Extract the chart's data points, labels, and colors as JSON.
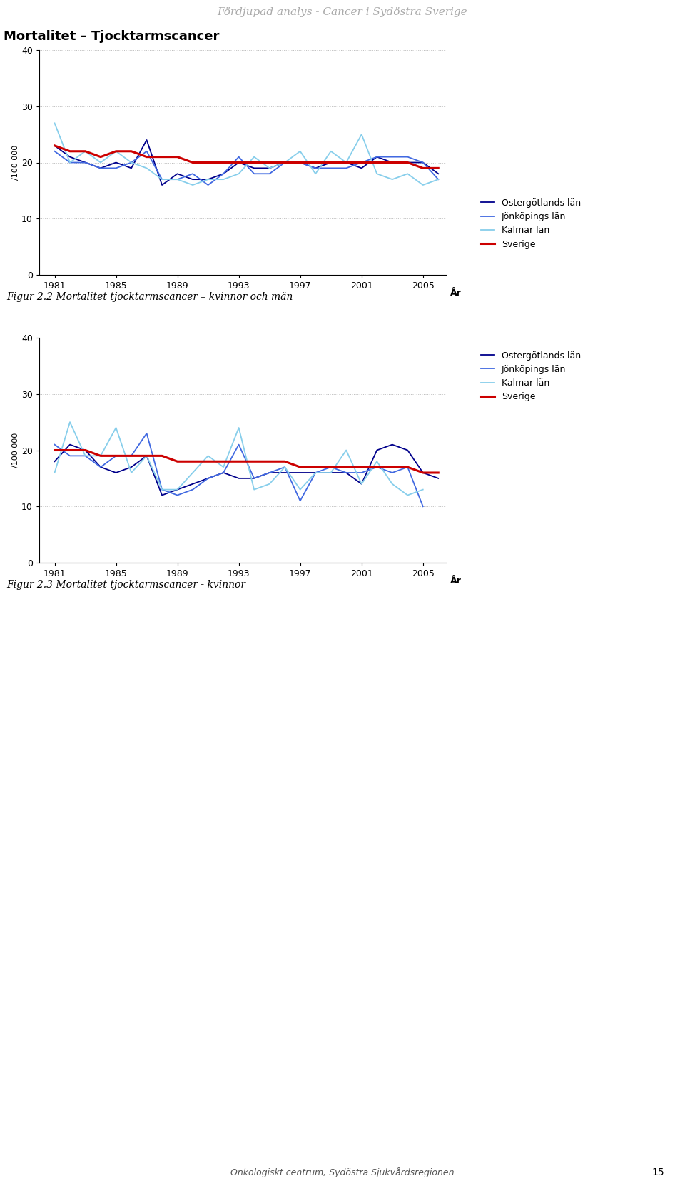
{
  "page_header": "Fördjupad analys - Cancer i Sydöstra Sverige",
  "page_footer": "Onkologiskt centrum, Sydöstra Sjukvårdsregionen",
  "page_number": "15",
  "chart1_title": "Mortalitet – Tjocktarmscancer",
  "chart1_caption": "Figur 2.2 Mortalitet tjocktarmscancer – kvinnor och män",
  "chart2_caption": "Figur 2.3 Mortalitet tjocktarmscancer - kvinnor",
  "ylabel": "/100 000",
  "xlabel": "År",
  "years": [
    1981,
    1982,
    1983,
    1984,
    1985,
    1986,
    1987,
    1988,
    1989,
    1990,
    1991,
    1992,
    1993,
    1994,
    1995,
    1996,
    1997,
    1998,
    1999,
    2000,
    2001,
    2002,
    2003,
    2004,
    2005,
    2006
  ],
  "chart1": {
    "ostergotland": [
      23,
      21,
      20,
      19,
      20,
      19,
      24,
      16,
      18,
      17,
      17,
      18,
      20,
      19,
      19,
      20,
      20,
      19,
      20,
      20,
      19,
      21,
      20,
      20,
      20,
      18
    ],
    "jonkoping": [
      22,
      20,
      20,
      19,
      19,
      20,
      22,
      17,
      17,
      18,
      16,
      18,
      21,
      18,
      18,
      20,
      20,
      19,
      19,
      19,
      20,
      21,
      21,
      21,
      20,
      17
    ],
    "kalmar": [
      27,
      20,
      22,
      20,
      22,
      20,
      19,
      17,
      17,
      16,
      17,
      17,
      18,
      21,
      19,
      20,
      22,
      18,
      22,
      20,
      25,
      18,
      17,
      18,
      16,
      17
    ],
    "sverige": [
      23,
      22,
      22,
      21,
      22,
      22,
      21,
      21,
      21,
      20,
      20,
      20,
      20,
      20,
      20,
      20,
      20,
      20,
      20,
      20,
      20,
      20,
      20,
      20,
      19,
      19
    ]
  },
  "chart2": {
    "ostergotland": [
      18,
      21,
      20,
      17,
      16,
      17,
      19,
      12,
      13,
      14,
      15,
      16,
      15,
      15,
      16,
      16,
      16,
      16,
      16,
      16,
      14,
      20,
      21,
      20,
      16,
      15
    ],
    "jonkoping": [
      21,
      19,
      19,
      17,
      19,
      19,
      23,
      13,
      12,
      13,
      15,
      16,
      21,
      15,
      16,
      17,
      11,
      16,
      17,
      16,
      16,
      17,
      16,
      17,
      10,
      null
    ],
    "kalmar": [
      16,
      25,
      19,
      19,
      24,
      16,
      19,
      13,
      13,
      16,
      19,
      17,
      24,
      13,
      14,
      17,
      13,
      16,
      16,
      20,
      14,
      18,
      14,
      12,
      13,
      null
    ],
    "sverige": [
      20,
      20,
      20,
      19,
      19,
      19,
      19,
      19,
      18,
      18,
      18,
      18,
      18,
      18,
      18,
      18,
      17,
      17,
      17,
      17,
      17,
      17,
      17,
      17,
      16,
      16
    ]
  },
  "colors": {
    "ostergotland": "#00008B",
    "jonkoping": "#4169E1",
    "kalmar": "#87CEEB",
    "sverige": "#CC0000"
  },
  "legend_labels": [
    "Östergötlands län",
    "Jönköpings län",
    "Kalmar län",
    "Sverige"
  ],
  "ylim": [
    0,
    40
  ],
  "yticks": [
    0,
    10,
    20,
    30,
    40
  ],
  "xticks": [
    1981,
    1985,
    1989,
    1993,
    1997,
    2001,
    2005
  ],
  "background_color": "#FFFFFF",
  "caption_bg_color": "#F0F0E0",
  "grid_color": "#BBBBBB",
  "header_color": "#AAAAAA",
  "header_fontsize": 11,
  "title_fontsize": 13,
  "caption_fontsize": 10,
  "tick_fontsize": 9,
  "legend_fontsize": 9,
  "ylabel_fontsize": 8,
  "xlabel_fontsize": 9
}
